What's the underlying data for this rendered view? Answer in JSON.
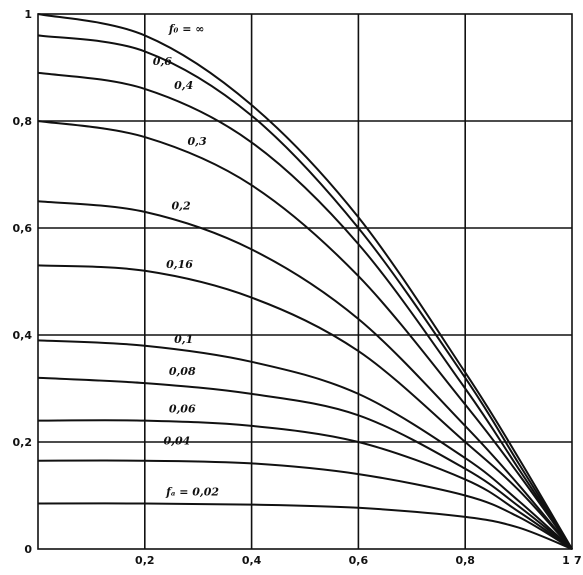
{
  "chart_data": {
    "type": "line",
    "title": "",
    "xlabel": "",
    "ylabel": "",
    "xlim": [
      0,
      1
    ],
    "ylim": [
      0,
      1
    ],
    "grid": true,
    "x_ticks": [
      "0,2",
      "0,4",
      "0,6",
      "0,8",
      "1"
    ],
    "y_ticks": [
      "0",
      "0,2",
      "0,4",
      "0,6",
      "0,8",
      "1"
    ],
    "x_end_mark": "7",
    "series": [
      {
        "name": "f₀ = ∞",
        "x": [
          0,
          0.2,
          0.4,
          0.6,
          0.8,
          0.9,
          1
        ],
        "y": [
          1.0,
          0.96,
          0.83,
          0.62,
          0.33,
          0.17,
          0
        ]
      },
      {
        "name": "0,6",
        "x": [
          0,
          0.2,
          0.4,
          0.6,
          0.8,
          0.9,
          1
        ],
        "y": [
          0.96,
          0.93,
          0.81,
          0.6,
          0.32,
          0.16,
          0
        ]
      },
      {
        "name": "0,4",
        "x": [
          0,
          0.2,
          0.4,
          0.6,
          0.8,
          0.9,
          1
        ],
        "y": [
          0.89,
          0.86,
          0.76,
          0.57,
          0.3,
          0.15,
          0
        ]
      },
      {
        "name": "0,3",
        "x": [
          0,
          0.2,
          0.4,
          0.6,
          0.8,
          0.9,
          1
        ],
        "y": [
          0.8,
          0.77,
          0.68,
          0.51,
          0.27,
          0.14,
          0
        ]
      },
      {
        "name": "0,2",
        "x": [
          0,
          0.2,
          0.4,
          0.6,
          0.8,
          0.9,
          1
        ],
        "y": [
          0.65,
          0.63,
          0.56,
          0.43,
          0.23,
          0.12,
          0
        ]
      },
      {
        "name": "0,16",
        "x": [
          0,
          0.2,
          0.4,
          0.6,
          0.8,
          0.9,
          1
        ],
        "y": [
          0.53,
          0.52,
          0.47,
          0.37,
          0.2,
          0.11,
          0
        ]
      },
      {
        "name": "0,1",
        "x": [
          0,
          0.2,
          0.4,
          0.6,
          0.8,
          0.9,
          1
        ],
        "y": [
          0.39,
          0.38,
          0.35,
          0.29,
          0.17,
          0.09,
          0
        ]
      },
      {
        "name": "0,08",
        "x": [
          0,
          0.2,
          0.4,
          0.6,
          0.8,
          0.9,
          1
        ],
        "y": [
          0.32,
          0.31,
          0.29,
          0.25,
          0.15,
          0.08,
          0
        ]
      },
      {
        "name": "0,06",
        "x": [
          0,
          0.2,
          0.4,
          0.6,
          0.8,
          0.9,
          1
        ],
        "y": [
          0.24,
          0.24,
          0.23,
          0.2,
          0.13,
          0.07,
          0
        ]
      },
      {
        "name": "0,04",
        "x": [
          0,
          0.2,
          0.4,
          0.6,
          0.8,
          0.9,
          1
        ],
        "y": [
          0.165,
          0.165,
          0.16,
          0.14,
          0.1,
          0.06,
          0
        ]
      },
      {
        "name": "fₐ = 0,02",
        "x": [
          0,
          0.2,
          0.4,
          0.6,
          0.8,
          0.9,
          1
        ],
        "y": [
          0.085,
          0.085,
          0.083,
          0.077,
          0.06,
          0.04,
          0
        ]
      }
    ]
  }
}
